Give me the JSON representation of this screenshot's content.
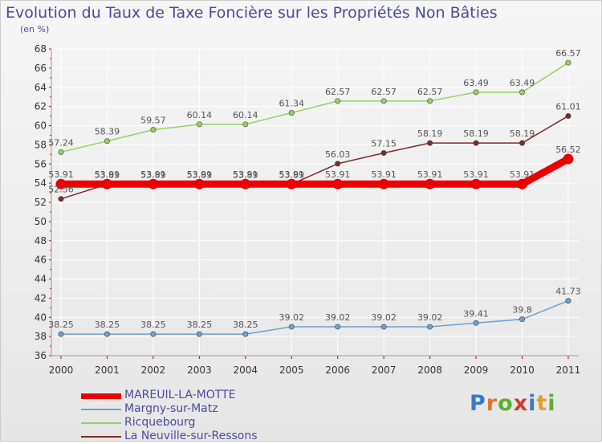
{
  "title": "Evolution du Taux de Taxe Foncière sur les Propriétés Non Bâties",
  "subtitle": "(en %)",
  "logo": {
    "text": "Proxiti",
    "letters": [
      "P",
      "r",
      "o",
      "x",
      "i",
      "t",
      "i"
    ],
    "colors": [
      "#3a78c9",
      "#e2772b",
      "#5fae2f",
      "#d43a2a",
      "#3a78c9",
      "#e2a02b",
      "#5fae2f"
    ]
  },
  "chart_data": {
    "type": "line",
    "title": "Evolution du Taux de Taxe Foncière sur les Propriétés Non Bâties",
    "ylabel": "(en %)",
    "xlabel": "",
    "x": [
      "2000",
      "2001",
      "2002",
      "2003",
      "2004",
      "2005",
      "2006",
      "2007",
      "2008",
      "2009",
      "2010",
      "2011"
    ],
    "ylim": [
      36,
      68
    ],
    "yticks": [
      36,
      38,
      40,
      42,
      44,
      46,
      48,
      50,
      52,
      54,
      56,
      58,
      60,
      62,
      64,
      66,
      68
    ],
    "grid": true,
    "series": [
      {
        "name": "Margny-sur-Matz",
        "color": "#6f9fcf",
        "values": [
          38.25,
          38.25,
          38.25,
          38.25,
          38.25,
          39.02,
          39.02,
          39.02,
          39.02,
          39.41,
          39.8,
          41.73
        ],
        "labels": [
          "38.25",
          "38.25",
          "38.25",
          "38.25",
          "38.25",
          "39.02",
          "39.02",
          "39.02",
          "39.02",
          "39.41",
          "39.8",
          "41.73"
        ]
      },
      {
        "name": "Ricquebourg",
        "color": "#95d160",
        "values": [
          57.24,
          58.39,
          59.57,
          60.14,
          60.14,
          61.34,
          62.57,
          62.57,
          62.57,
          63.49,
          63.49,
          66.57
        ],
        "labels": [
          "57.24",
          "58.39",
          "59.57",
          "60.14",
          "60.14",
          "61.34",
          "62.57",
          "62.57",
          "62.57",
          "63.49",
          "63.49",
          "66.57"
        ]
      },
      {
        "name": "La Neuville-sur-Ressons",
        "color": "#7b2c2c",
        "values": [
          52.36,
          53.89,
          53.89,
          53.89,
          53.89,
          53.89,
          56.03,
          57.15,
          58.19,
          58.19,
          58.19,
          61.01
        ],
        "labels": [
          "52.36",
          "53.89",
          "53.89",
          "53.89",
          "53.89",
          "53.89",
          "56.03",
          "57.15",
          "58.19",
          "58.19",
          "58.19",
          "61.01"
        ]
      },
      {
        "name": "MAREUIL-LA-MOTTE",
        "color": "#ee0000",
        "values": [
          53.91,
          53.91,
          53.91,
          53.91,
          53.91,
          53.91,
          53.91,
          53.91,
          53.91,
          53.91,
          53.91,
          56.52
        ],
        "labels": [
          "53.91",
          "53.91",
          "53.91",
          "53.91",
          "53.91",
          "53.91",
          "53.91",
          "53.91",
          "53.91",
          "53.91",
          "53.91",
          "56.52"
        ]
      }
    ],
    "legend": [
      "MAREUIL-LA-MOTTE",
      "Margny-sur-Matz",
      "Ricquebourg",
      "La Neuville-sur-Ressons"
    ]
  }
}
